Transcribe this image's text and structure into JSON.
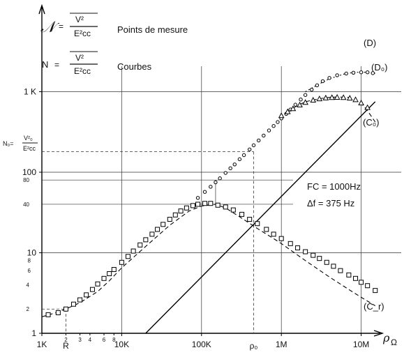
{
  "chart_data": {
    "type": "line",
    "title": "",
    "x_scale": "log",
    "y_scale": "log",
    "xlim": [
      1000,
      20000000
    ],
    "ylim": [
      1,
      3000
    ],
    "grid": true,
    "x_ticks": [
      {
        "value": 1000,
        "label": "1K"
      },
      {
        "value": 10000,
        "label": "10K"
      },
      {
        "value": 100000,
        "label": "100K"
      },
      {
        "value": 1000000,
        "label": "1M"
      },
      {
        "value": 10000000,
        "label": "10M"
      }
    ],
    "x_minor_ticks": [
      {
        "value": 2000,
        "label": "2"
      },
      {
        "value": 3000,
        "label": "3"
      },
      {
        "value": 4000,
        "label": "4"
      },
      {
        "value": 6000,
        "label": "6"
      },
      {
        "value": 8000,
        "label": "8"
      }
    ],
    "x_marks": [
      {
        "value": 2000,
        "label": "R"
      },
      {
        "value": 450000,
        "label": "ρ₀"
      }
    ],
    "y_ticks": [
      {
        "value": 1,
        "label": "1"
      },
      {
        "value": 10,
        "label": "10"
      },
      {
        "value": 100,
        "label": "100"
      },
      {
        "value": 1000,
        "label": "1 K"
      }
    ],
    "y_minor_ticks": [
      {
        "value": 2,
        "label": "2"
      },
      {
        "value": 4,
        "label": "4"
      },
      {
        "value": 40,
        "label": "40"
      },
      {
        "value": 80,
        "label": "80"
      }
    ],
    "y_minor_small": [
      {
        "value": 6,
        "label": "6"
      },
      {
        "value": 8,
        "label": "8"
      }
    ],
    "xlabel": "ρ",
    "xlabel_sub": "Ω",
    "ylabel": "",
    "legend": {
      "line1_symbol": "𝒩",
      "line1_eq": "=",
      "line1_num": "V²",
      "line1_den": "E²cc",
      "line1_text": "Points de mesure",
      "line2_symbol": "N",
      "line2_eq": "=",
      "line2_num": "V²",
      "line2_den": "E²cc",
      "line2_text": "Courbes"
    },
    "n0_label": {
      "symbol": "N₀=",
      "num": "V²₀",
      "den": "E²cc",
      "value": 180
    },
    "params": {
      "line1": "FC = 1000Hz",
      "line2": "Δf = 375 Hz"
    },
    "series": [
      {
        "name": "(D)",
        "style": "solid-line",
        "x": [
          20000,
          15000000
        ],
        "y": [
          1,
          750
        ]
      },
      {
        "name": "(D₀)",
        "style": "dotted-line",
        "x": [
          2000000,
          3000000,
          4000000,
          5000000,
          6000000,
          7000000,
          8000000,
          10000000,
          12000000,
          15000000
        ],
        "y": [
          1000,
          1250,
          1450,
          1550,
          1650,
          1700,
          1730,
          1750,
          1740,
          1700
        ]
      },
      {
        "name": "(C₀)",
        "style": "dashed-line",
        "x": [
          1200000,
          1500000,
          2000000,
          3000000,
          4000000,
          5000000,
          7000000,
          10000000,
          12000000,
          15000000
        ],
        "y": [
          560,
          650,
          750,
          820,
          850,
          860,
          850,
          720,
          580,
          420
        ]
      },
      {
        "name": "(C_r)",
        "style": "dashed-line",
        "x": [
          1000,
          1500,
          2000,
          3000,
          5000,
          7000,
          10000,
          20000,
          40000,
          70000,
          100000,
          150000,
          200000,
          300000,
          500000,
          800000,
          1000000,
          2000000,
          4000000,
          7000000,
          10000000,
          15000000
        ],
        "y": [
          1.6,
          1.8,
          2.0,
          2.4,
          3.3,
          4.5,
          6.5,
          12,
          22,
          33,
          38,
          40,
          36,
          28,
          20,
          15,
          13,
          8,
          5,
          3.5,
          2.8,
          2.2
        ]
      },
      {
        "name": "Points (circles)",
        "style": "markers-circle",
        "x": [
          90000,
          110000,
          130000,
          150000,
          170000,
          200000,
          230000,
          260000,
          300000,
          340000,
          400000,
          450000,
          520000,
          600000,
          700000,
          800000,
          900000,
          1000000,
          1150000,
          1300000,
          1500000,
          1750000,
          2000000,
          2400000,
          2800000,
          3300000,
          4000000,
          5000000,
          6500000,
          8000000,
          10000000,
          12000000,
          14000000
        ],
        "y": [
          48,
          57,
          66,
          75,
          84,
          98,
          112,
          125,
          145,
          163,
          192,
          216,
          248,
          285,
          330,
          375,
          420,
          466,
          530,
          600,
          690,
          800,
          910,
          1060,
          1200,
          1350,
          1480,
          1600,
          1680,
          1720,
          1740,
          1740,
          1700
        ]
      },
      {
        "name": "Points (triangles)",
        "style": "markers-triangle",
        "x": [
          1000000,
          1200000,
          1400000,
          1700000,
          2000000,
          2500000,
          3000000,
          3600000,
          4300000,
          5000000,
          6000000,
          7200000,
          8500000,
          10000000,
          12000000
        ],
        "y": [
          500,
          560,
          610,
          680,
          730,
          780,
          810,
          830,
          840,
          845,
          840,
          825,
          790,
          720,
          630
        ]
      },
      {
        "name": "Points (squares)",
        "style": "markers-square",
        "x": [
          1200,
          1600,
          2000,
          2500,
          3000,
          3600,
          4300,
          5000,
          6000,
          7000,
          8000,
          10000,
          12000,
          14000,
          17000,
          20000,
          24000,
          28000,
          33000,
          40000,
          47000,
          55000,
          65000,
          78000,
          90000,
          110000,
          130000,
          160000,
          200000,
          250000,
          320000,
          400000,
          500000,
          650000,
          800000,
          1000000,
          1300000,
          1600000,
          2000000,
          2500000,
          3000000,
          3700000,
          4500000,
          5500000,
          7000000,
          8500000,
          10000000,
          12000000,
          15000000
        ],
        "y": [
          1.7,
          1.8,
          2.0,
          2.3,
          2.6,
          3.0,
          3.5,
          4.1,
          4.8,
          5.5,
          6.2,
          7.6,
          9.0,
          10.5,
          12.5,
          14.5,
          17,
          19.5,
          22.5,
          26,
          29.5,
          33,
          36,
          38.5,
          40,
          41,
          41,
          39,
          37,
          34,
          30,
          26,
          23,
          19.5,
          17,
          15,
          13,
          11.5,
          10.3,
          9.3,
          8.5,
          7.6,
          6.8,
          6.0,
          5.3,
          4.8,
          4.3,
          3.9,
          3.4
        ]
      }
    ]
  }
}
